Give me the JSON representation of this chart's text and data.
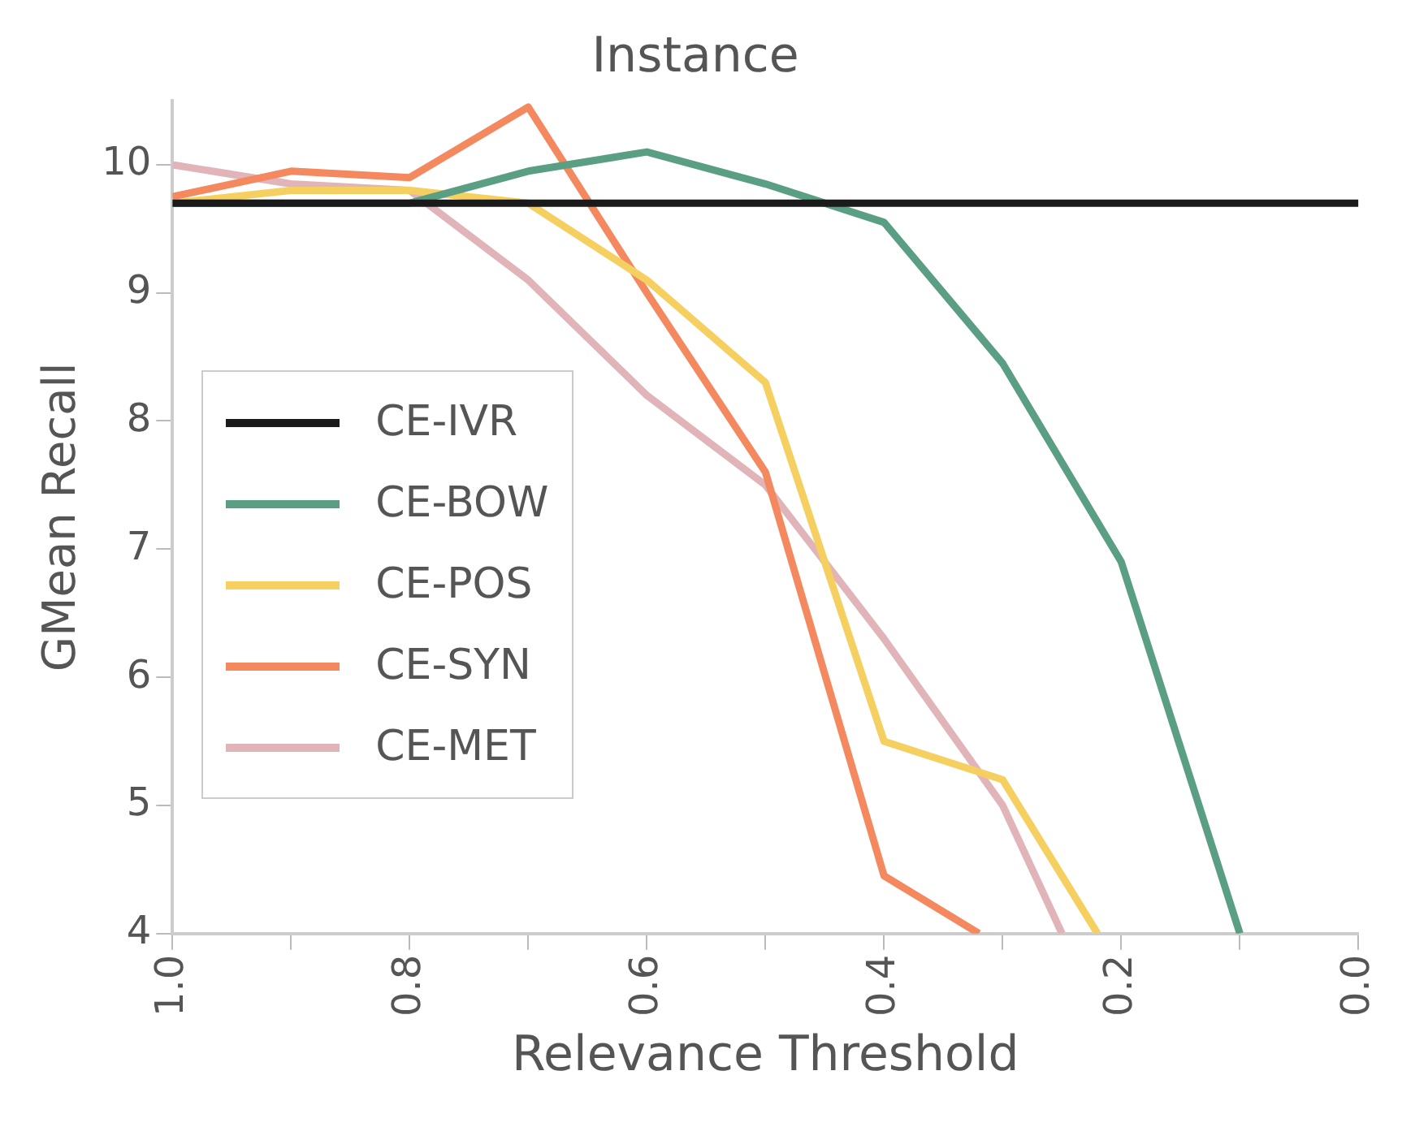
{
  "chart_data": {
    "type": "line",
    "title": "Instance",
    "xlabel": "Relevance Threshold",
    "ylabel": "GMean Recall",
    "xlim": [
      1,
      0
    ],
    "ylim": [
      4,
      10.5
    ],
    "xticks": [
      {
        "value": 1,
        "label": "1.0"
      },
      {
        "value": 0.9,
        "label": null
      },
      0.8,
      {
        "value": 0.7,
        "label": null
      },
      0.6,
      {
        "value": 0.5,
        "label": null
      },
      0.4,
      {
        "value": 0.3,
        "label": null
      },
      0.2,
      {
        "value": 0.1,
        "label": null
      },
      {
        "value": 0,
        "label": "0.0"
      }
    ],
    "yticks": [
      4,
      5,
      6,
      7,
      8,
      9,
      10
    ],
    "grid": false,
    "legend": "left",
    "marker": "none",
    "line_style": "solid",
    "series": [
      {
        "name": "CE-IVR",
        "color": "#1a1a1a",
        "x": [
          1,
          0.9,
          0.8,
          0.7,
          0.6,
          0.5,
          0.4,
          0.3,
          0.2,
          0.1,
          0
        ],
        "values": [
          9.7,
          9.7,
          9.7,
          9.7,
          9.7,
          9.7,
          9.7,
          9.7,
          9.7,
          9.7,
          9.7
        ]
      },
      {
        "name": "CE-BOW",
        "color": "#5a9e84",
        "x": [
          1,
          0.9,
          0.8,
          0.7,
          0.6,
          0.5,
          0.4,
          0.3,
          0.2,
          0.1
        ],
        "values": [
          9.7,
          9.7,
          9.7,
          9.95,
          10.1,
          9.85,
          9.55,
          8.45,
          6.9,
          4.0
        ]
      },
      {
        "name": "CE-POS",
        "color": "#f5d060",
        "x": [
          1,
          0.9,
          0.8,
          0.7,
          0.6,
          0.5,
          0.4,
          0.3,
          0.22
        ],
        "values": [
          9.7,
          9.8,
          9.8,
          9.7,
          9.1,
          8.3,
          5.5,
          5.2,
          4.0
        ]
      },
      {
        "name": "CE-SYN",
        "color": "#f4895f",
        "x": [
          1,
          0.9,
          0.8,
          0.7,
          0.6,
          0.5,
          0.4,
          0.32
        ],
        "values": [
          9.75,
          9.95,
          9.9,
          10.45,
          9.0,
          7.6,
          4.45,
          4.0
        ]
      },
      {
        "name": "CE-MET",
        "color": "#e0b4b8",
        "x": [
          1,
          0.9,
          0.8,
          0.7,
          0.6,
          0.5,
          0.4,
          0.3,
          0.25
        ],
        "values": [
          10.0,
          9.85,
          9.8,
          9.1,
          8.2,
          7.5,
          6.3,
          5.0,
          4.0
        ]
      }
    ]
  }
}
